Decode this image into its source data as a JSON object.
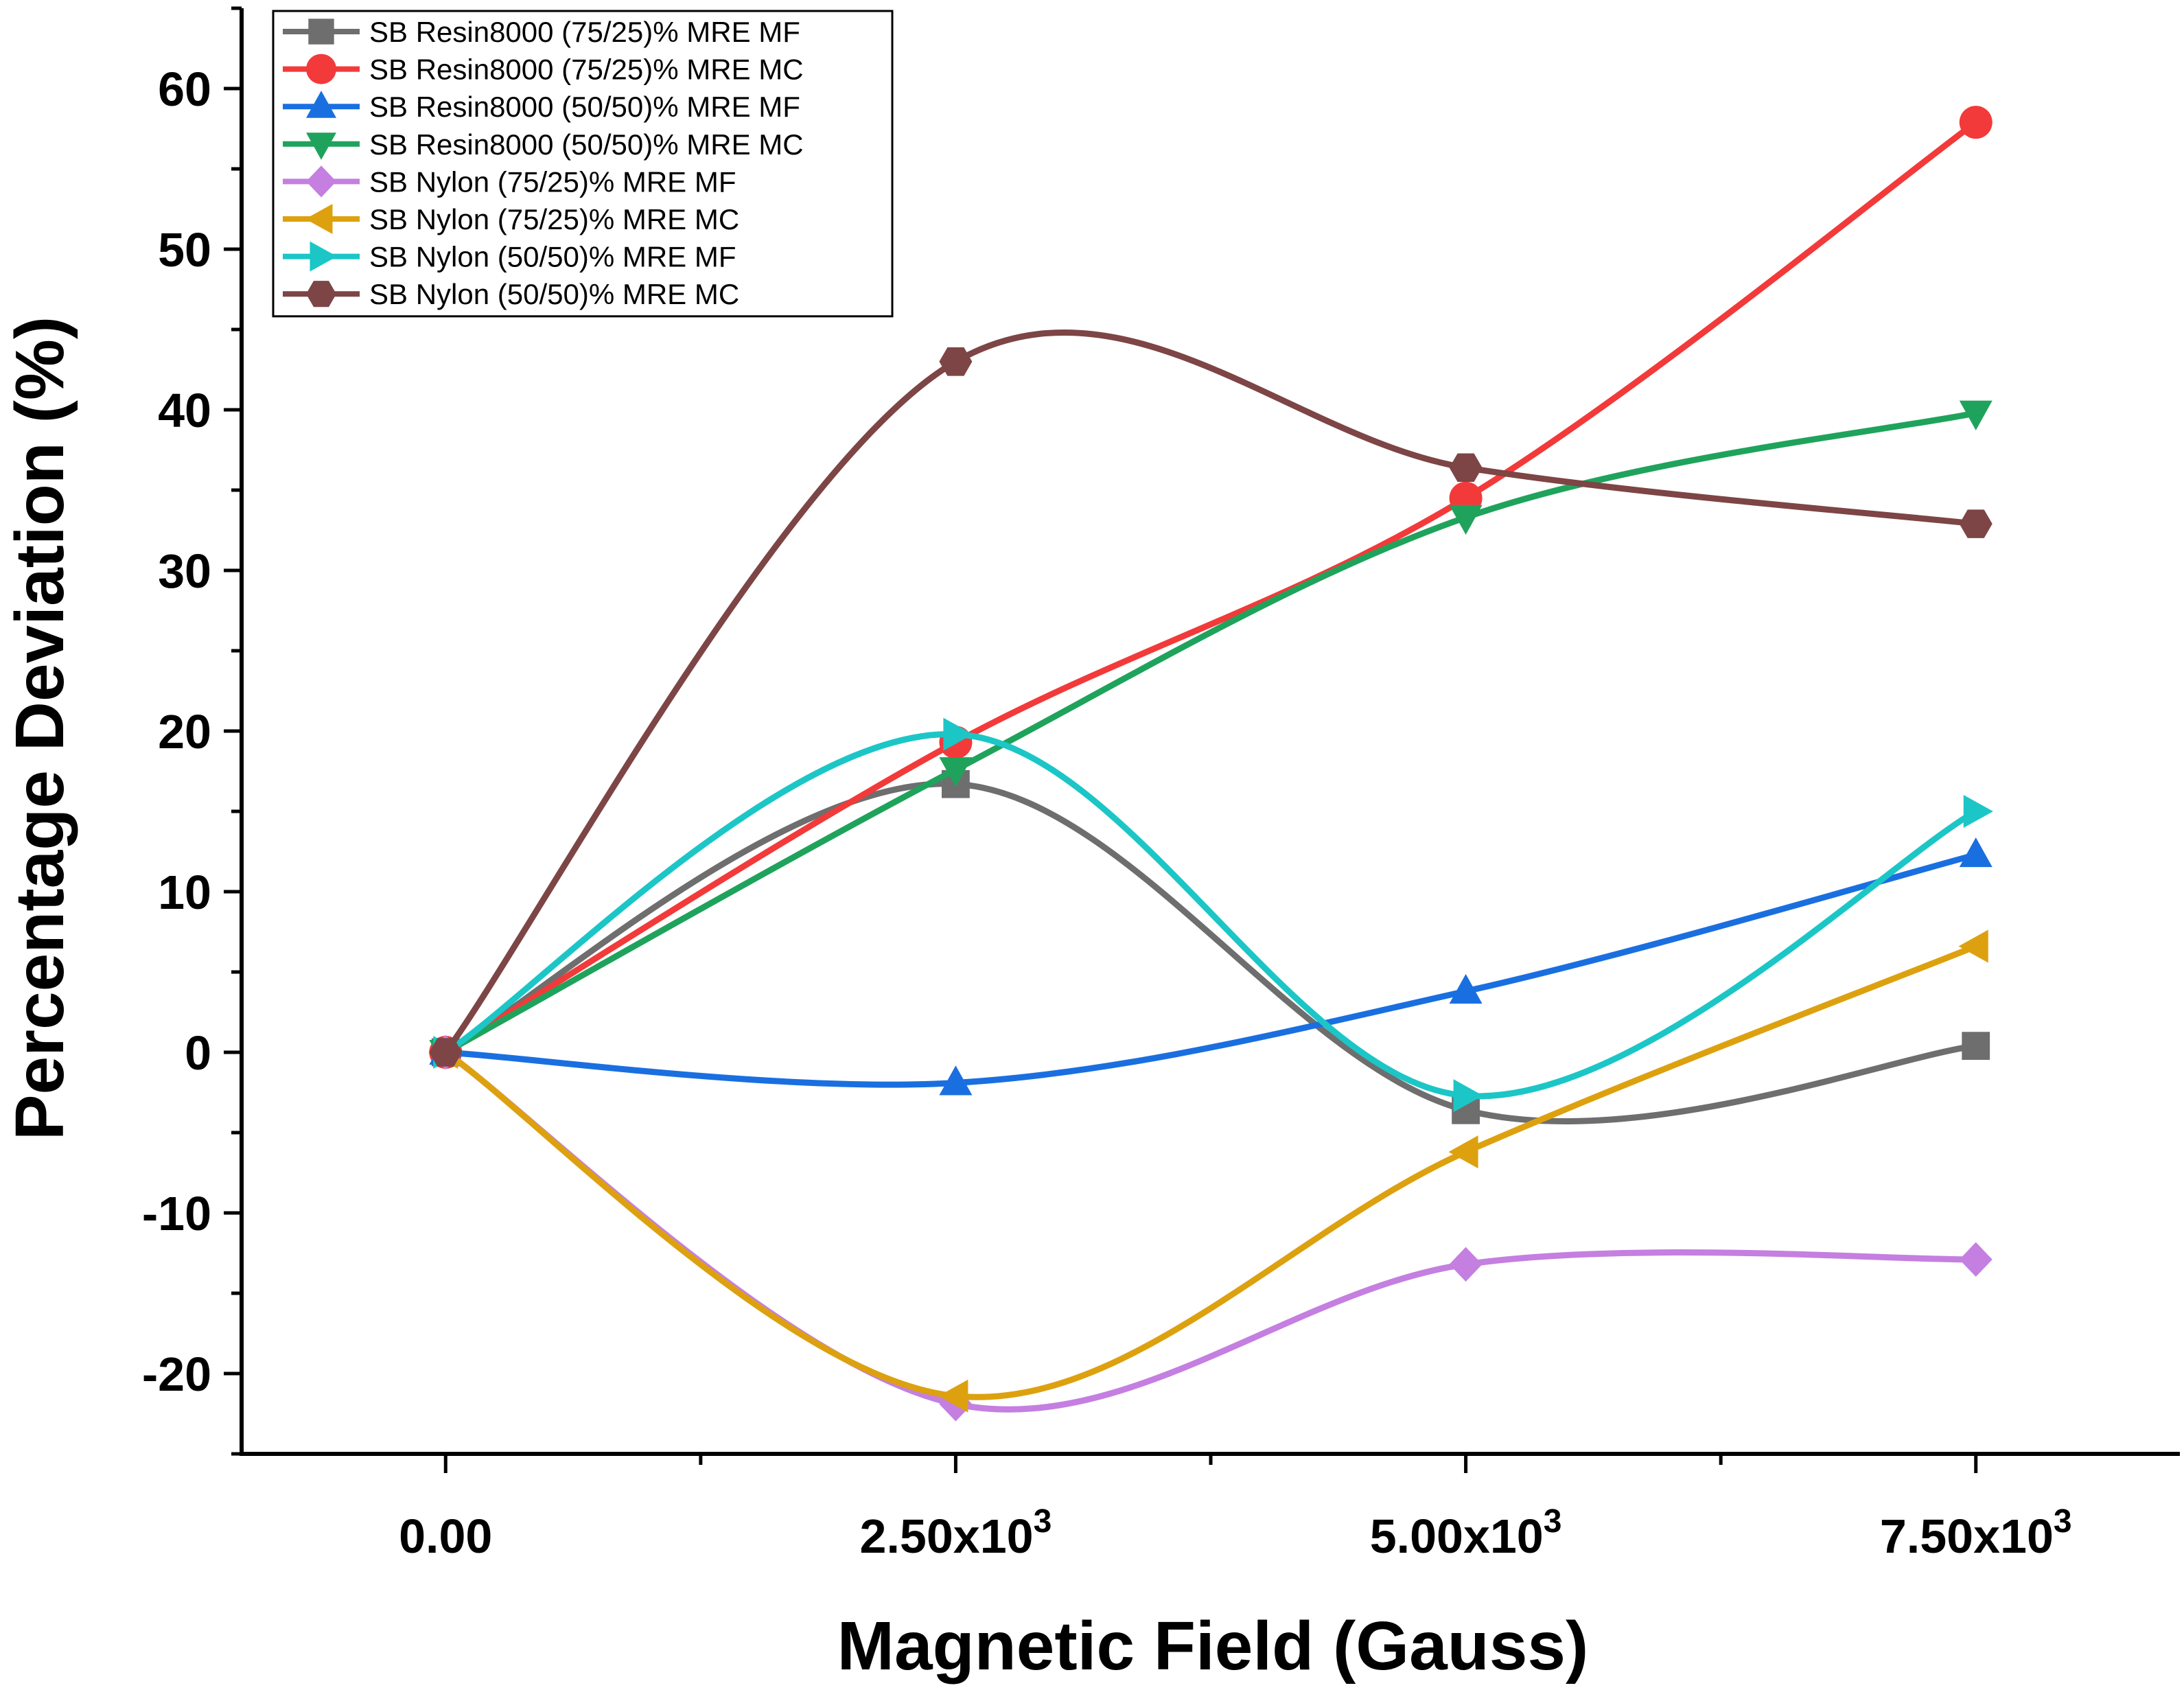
{
  "chart_data": {
    "type": "line",
    "title": "",
    "xlabel": "Magnetic Field (Gauss)",
    "ylabel": "Percentage Deviation (%)",
    "x": [
      0,
      2500,
      5000,
      7500
    ],
    "xlim": [
      -1000,
      8500
    ],
    "ylim": [
      -25,
      65
    ],
    "x_ticks": [
      {
        "value": 0,
        "label": "0.00",
        "sup": ""
      },
      {
        "value": 2500,
        "label": "2.50x10",
        "sup": "3"
      },
      {
        "value": 5000,
        "label": "5.00x10",
        "sup": "3"
      },
      {
        "value": 7500,
        "label": "7.50x10",
        "sup": "3"
      }
    ],
    "y_ticks": [
      -20,
      -10,
      0,
      10,
      20,
      30,
      40,
      50,
      60
    ],
    "legend_position": "top-left",
    "series": [
      {
        "name": "SB Resin8000 (75/25)% MRE MF",
        "values": [
          0,
          16.7,
          -3.6,
          0.4
        ],
        "color": "#6e6e6e",
        "marker": "square"
      },
      {
        "name": "SB Resin8000 (75/25)% MRE MC",
        "values": [
          0,
          19.3,
          34.5,
          57.9
        ],
        "color": "#f23a3a",
        "marker": "circle"
      },
      {
        "name": "SB Resin8000 (50/50)% MRE MF",
        "values": [
          0,
          -1.9,
          3.8,
          12.3
        ],
        "color": "#1a6fe0",
        "marker": "triangle-up"
      },
      {
        "name": "SB Resin8000 (50/50)% MRE MC",
        "values": [
          0,
          17.6,
          33.3,
          39.8
        ],
        "color": "#1fa35c",
        "marker": "triangle-down"
      },
      {
        "name": "SB Nylon (75/25)% MRE MF",
        "values": [
          0,
          -21.9,
          -13.2,
          -12.9
        ],
        "color": "#c47fe0",
        "marker": "diamond"
      },
      {
        "name": "SB Nylon (75/25)% MRE MC",
        "values": [
          0,
          -21.4,
          -6.2,
          6.6
        ],
        "color": "#dda10f",
        "marker": "triangle-left"
      },
      {
        "name": "SB Nylon (50/50)% MRE MF",
        "values": [
          0,
          19.8,
          -2.7,
          15.0
        ],
        "color": "#1cc6c6",
        "marker": "triangle-right"
      },
      {
        "name": "SB Nylon (50/50)% MRE MC",
        "values": [
          0,
          43.0,
          36.4,
          32.9
        ],
        "color": "#7d4545",
        "marker": "hexagon"
      }
    ]
  }
}
